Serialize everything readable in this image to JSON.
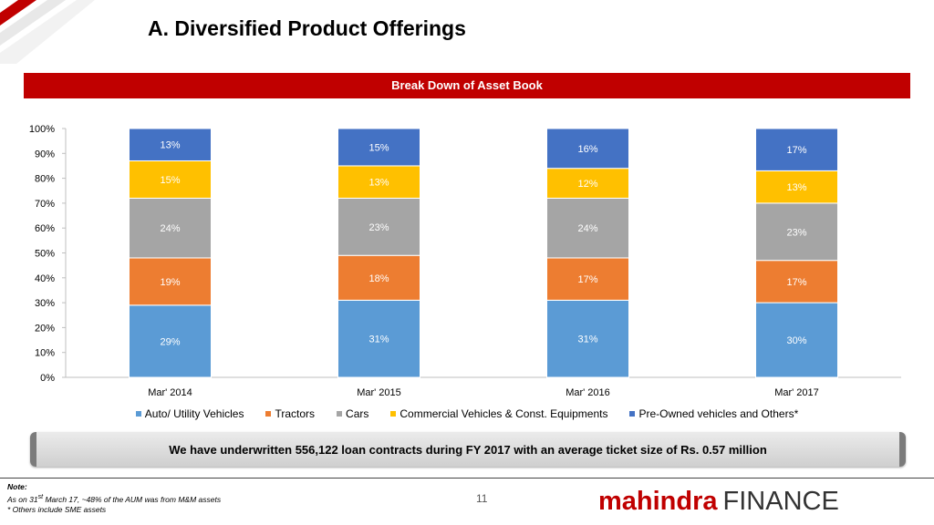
{
  "page": {
    "title": "A. Diversified Product Offerings",
    "subtitle": "Break Down of Asset Book",
    "highlight": "We have underwritten 556,122 loan contracts during FY 2017 with an average ticket size of Rs. 0.57 million",
    "notes_heading": "Note:",
    "note_line1_prefix": "As on 31",
    "note_line1_sup": "st",
    "note_line1_suffix": " March 17, ~48% of the AUM was from M&M assets",
    "note_line2": "* Others include SME assets",
    "page_number": "11",
    "brand_primary": "mahindra",
    "brand_secondary": "FINANCE",
    "brand_color": "#c00000"
  },
  "chart_data": {
    "type": "bar",
    "stacked": true,
    "title": "Break Down of Asset Book",
    "categories": [
      "Mar' 2014",
      "Mar' 2015",
      "Mar' 2016",
      "Mar' 2017"
    ],
    "series": [
      {
        "name": "Auto/ Utility Vehicles",
        "color": "#5b9bd5",
        "values": [
          29,
          31,
          31,
          30
        ],
        "labels": [
          "29%",
          "31%",
          "31%",
          "30%"
        ]
      },
      {
        "name": "Tractors",
        "color": "#ed7d31",
        "values": [
          19,
          18,
          17,
          17
        ],
        "labels": [
          "19%",
          "18%",
          "17%",
          "17%"
        ]
      },
      {
        "name": "Cars",
        "color": "#a5a5a5",
        "values": [
          24,
          23,
          24,
          23
        ],
        "labels": [
          "24%",
          "23%",
          "24%",
          "23%"
        ]
      },
      {
        "name": "Commercial Vehicles & Const. Equipments",
        "color": "#ffc000",
        "values": [
          15,
          13,
          12,
          13
        ],
        "labels": [
          "15%",
          "13%",
          "12%",
          "13%"
        ]
      },
      {
        "name": "Pre-Owned vehicles and Others*",
        "color": "#4472c4",
        "values": [
          13,
          15,
          16,
          17
        ],
        "labels": [
          "13%",
          "15%",
          "16%",
          "17%"
        ]
      }
    ],
    "ylim": [
      0,
      100
    ],
    "yticks": [
      "0%",
      "10%",
      "20%",
      "30%",
      "40%",
      "50%",
      "60%",
      "70%",
      "80%",
      "90%",
      "100%"
    ],
    "grid": false,
    "legend_position": "bottom"
  }
}
